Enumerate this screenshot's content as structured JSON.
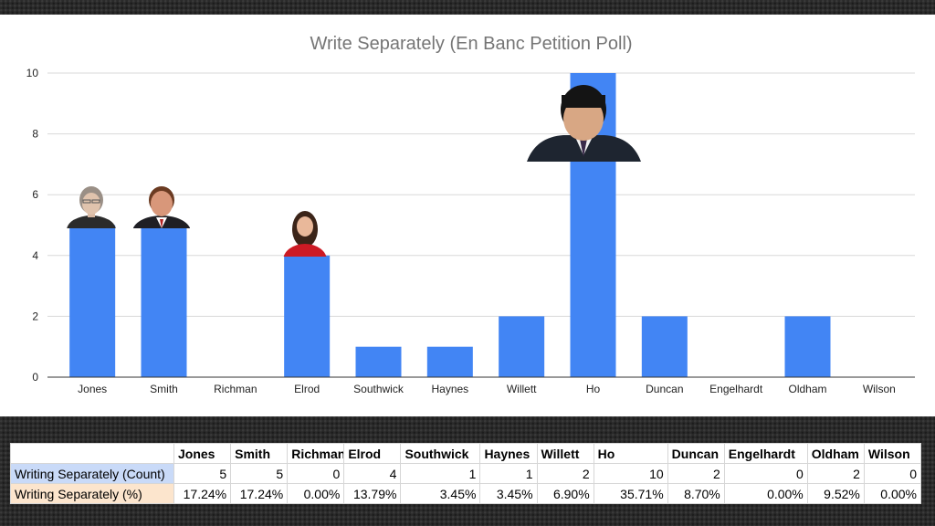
{
  "chart_data": {
    "type": "bar",
    "title": "Write Separately (En Banc Petition Poll)",
    "categories": [
      "Jones",
      "Smith",
      "Richman",
      "Elrod",
      "Southwick",
      "Haynes",
      "Willett",
      "Ho",
      "Duncan",
      "Engelhardt",
      "Oldham",
      "Wilson"
    ],
    "values": [
      5,
      5,
      0,
      4,
      1,
      1,
      2,
      10,
      2,
      0,
      2,
      0
    ],
    "ylim": [
      0,
      10
    ],
    "yticks": [
      0,
      2,
      4,
      6,
      8,
      10
    ],
    "bar_color": "#4285f4",
    "grid": true,
    "xlabel": "",
    "ylabel": ""
  },
  "table": {
    "headers": [
      "",
      "Jones",
      "Smith",
      "Richman",
      "Elrod",
      "Southwick",
      "Haynes",
      "Willett",
      "Ho",
      "Duncan",
      "Engelhardt",
      "Oldham",
      "Wilson"
    ],
    "rows": [
      {
        "label": "Writing Separately (Count)",
        "cells": [
          "5",
          "5",
          "0",
          "4",
          "1",
          "1",
          "2",
          "10",
          "2",
          "0",
          "2",
          "0"
        ]
      },
      {
        "label": "Writing Separately (%)",
        "cells": [
          "17.24%",
          "17.24%",
          "0.00%",
          "13.79%",
          "3.45%",
          "3.45%",
          "6.90%",
          "35.71%",
          "8.70%",
          "0.00%",
          "9.52%",
          "0.00%"
        ]
      }
    ],
    "count_label_color": "#c9daf8",
    "pct_label_color": "#fce5cd"
  },
  "portraits": [
    "Jones",
    "Smith",
    "Elrod",
    "Ho"
  ]
}
